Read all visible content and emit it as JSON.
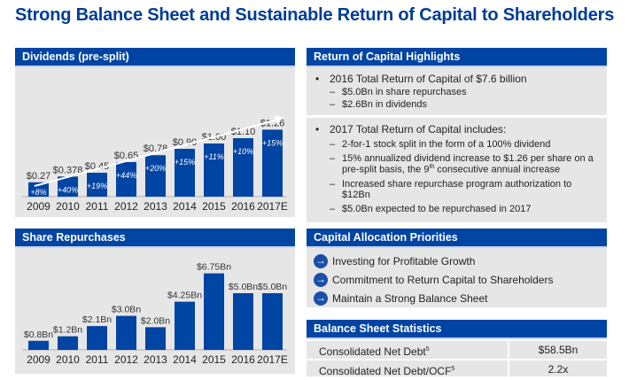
{
  "page": {
    "title": "Strong Balance Sheet and Sustainable Return of Capital to Shareholders"
  },
  "colors": {
    "header_blue": "#0044a4",
    "bar_blue": "#0044a4",
    "panel_bg": "#e6e6e6",
    "title_blue": "#003c96"
  },
  "chart_data": [
    {
      "type": "bar",
      "title": "Dividends (pre-split)",
      "categories": [
        "2009",
        "2010",
        "2011",
        "2012",
        "2013",
        "2014",
        "2015",
        "2016",
        "2017E"
      ],
      "values": [
        0.27,
        0.378,
        0.45,
        0.65,
        0.78,
        0.9,
        1.0,
        1.1,
        1.26
      ],
      "value_labels": [
        "$0.27",
        "$0.378",
        "$0.45",
        "$0.65",
        "$0.78",
        "$0.90",
        "$1.00",
        "$1.10",
        "$1.26"
      ],
      "growth_labels": [
        "+8%",
        "+40%",
        "+19%",
        "+44%",
        "+20%",
        "+15%",
        "+11%",
        "+10%",
        "+15%"
      ],
      "annotation": "trend-arrow",
      "ylim": [
        0,
        1.4
      ],
      "grid": false
    },
    {
      "type": "bar",
      "title": "Share Repurchases",
      "categories": [
        "2009",
        "2010",
        "2011",
        "2012",
        "2013",
        "2014",
        "2015",
        "2016",
        "2017E"
      ],
      "values": [
        0.8,
        1.2,
        2.1,
        3.0,
        2.0,
        4.25,
        6.75,
        5.0,
        5.0
      ],
      "value_labels": [
        "$0.8Bn",
        "$1.2Bn",
        "$2.1Bn",
        "$3.0Bn",
        "$2.0Bn",
        "$4.25Bn",
        "$6.75Bn",
        "$5.0Bn",
        "$5.0Bn"
      ],
      "ylim": [
        0,
        7.5
      ],
      "grid": false
    }
  ],
  "highlights": {
    "title": "Return of Capital Highlights",
    "sections": [
      {
        "bullet": "2016 Total Return of Capital of $7.6 billion",
        "subs": [
          "$5.0Bn in share repurchases",
          "$2.6Bn in dividends"
        ]
      },
      {
        "bullet": "2017 Total Return of Capital includes:",
        "subs": [
          "2-for-1 stock split in the form of a 100% dividend",
          "15% annualized dividend increase to $1.26 per share on a pre-split basis, the 9th consecutive annual increase",
          "Increased share repurchase program authorization to $12Bn",
          "$5.0Bn expected to be repurchased in 2017"
        ]
      }
    ]
  },
  "priorities": {
    "title": "Capital Allocation Priorities",
    "items": [
      "Investing for Profitable Growth",
      "Commitment to Return Capital to Shareholders",
      "Maintain a Strong Balance Sheet"
    ]
  },
  "balance": {
    "title": "Balance Sheet Statistics",
    "rows": [
      {
        "label": "Consolidated Net Debt",
        "sup": "5",
        "value": "$58.5Bn"
      },
      {
        "label": "Consolidated Net Debt/OCF",
        "sup": "5",
        "value": "2.2x"
      }
    ]
  }
}
